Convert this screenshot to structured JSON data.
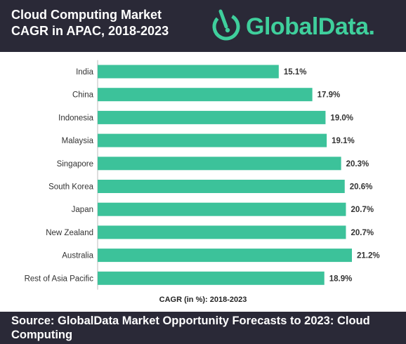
{
  "header": {
    "title_line1": "Cloud Computing Market",
    "title_line2": "CAGR in APAC, 2018-2023",
    "logo_text": "GlobalData.",
    "logo_icon": "globaldata-logo-icon",
    "background_color": "#2a2937",
    "accent_color": "#3fcf9c"
  },
  "chart_data": {
    "type": "bar",
    "orientation": "horizontal",
    "categories": [
      "India",
      "China",
      "Indonesia",
      "Malaysia",
      "Singapore",
      "South Korea",
      "Japan",
      "New Zealand",
      "Australia",
      "Rest of Asia Pacific"
    ],
    "values": [
      15.1,
      17.9,
      19.0,
      19.1,
      20.3,
      20.6,
      20.7,
      20.7,
      21.2,
      18.9
    ],
    "value_labels": [
      "15.1%",
      "17.9%",
      "19.0%",
      "19.1%",
      "20.3%",
      "20.6%",
      "20.7%",
      "20.7%",
      "21.2%",
      "18.9%"
    ],
    "xlabel": "CAGR (in %): 2018-2023",
    "xlim": [
      0,
      21.2
    ],
    "bar_color": "#3cc29a",
    "grid": false
  },
  "footer": {
    "source": "Source: GlobalData Market Opportunity Forecasts to 2023: Cloud Computing"
  }
}
